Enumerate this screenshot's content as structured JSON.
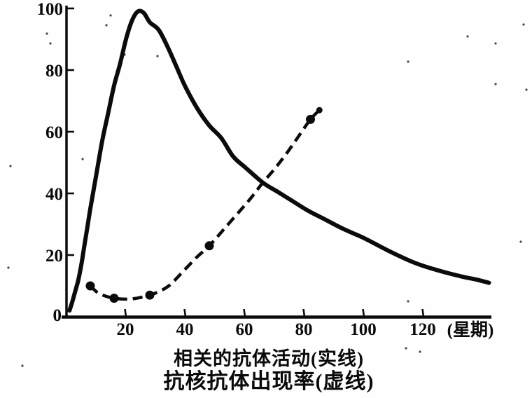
{
  "chart_data": {
    "type": "line",
    "title": "",
    "xlabel": "(星期)",
    "ylabel": "",
    "xlim": [
      0,
      145
    ],
    "ylim": [
      0,
      100
    ],
    "x_ticks": [
      20,
      40,
      60,
      80,
      100,
      120
    ],
    "y_ticks": [
      0,
      20,
      40,
      60,
      80,
      100
    ],
    "grid": false,
    "legend_position": "caption-below",
    "ink_color": "#0b0b0b",
    "background_color": "#fefefe",
    "series": [
      {
        "name": "相关的抗体活动(实线)",
        "line_style": "solid",
        "points": [
          [
            1,
            2
          ],
          [
            2,
            5
          ],
          [
            3,
            8.5
          ],
          [
            4,
            12
          ],
          [
            5,
            17
          ],
          [
            6,
            23
          ],
          [
            7,
            29
          ],
          [
            8,
            35
          ],
          [
            10,
            46
          ],
          [
            12,
            57
          ],
          [
            14,
            66
          ],
          [
            16,
            75
          ],
          [
            18,
            82
          ],
          [
            20,
            90
          ],
          [
            22,
            96
          ],
          [
            24,
            99
          ],
          [
            26,
            98.5
          ],
          [
            28,
            95.5
          ],
          [
            31,
            93
          ],
          [
            34,
            87.5
          ],
          [
            37,
            81
          ],
          [
            40,
            74.5
          ],
          [
            44,
            67.5
          ],
          [
            48,
            62
          ],
          [
            52,
            58
          ],
          [
            56,
            52
          ],
          [
            60,
            48.5
          ],
          [
            66,
            43.5
          ],
          [
            71,
            40.5
          ],
          [
            76,
            37.5
          ],
          [
            81,
            34.5
          ],
          [
            86,
            32
          ],
          [
            93,
            28.5
          ],
          [
            100,
            25.5
          ],
          [
            108,
            21.5
          ],
          [
            117,
            17.5
          ],
          [
            125,
            15
          ],
          [
            133,
            13
          ],
          [
            138,
            12
          ],
          [
            142,
            11
          ]
        ]
      },
      {
        "name": "抗核抗体出现率(虚线)",
        "line_style": "dashed",
        "points": [
          [
            8,
            10
          ],
          [
            11,
            7.5
          ],
          [
            16,
            6
          ],
          [
            22,
            5.8
          ],
          [
            28,
            7
          ],
          [
            32,
            8.6
          ],
          [
            35,
            10.5
          ],
          [
            39,
            14.5
          ],
          [
            44,
            19.5
          ],
          [
            48,
            23
          ],
          [
            53,
            28.5
          ],
          [
            58,
            34
          ],
          [
            62,
            38.5
          ],
          [
            66,
            43.5
          ],
          [
            70,
            48
          ],
          [
            74,
            53
          ],
          [
            78,
            58.5
          ],
          [
            82,
            64
          ],
          [
            85,
            67
          ]
        ],
        "marker_points": [
          [
            8,
            10
          ],
          [
            16,
            6
          ],
          [
            28,
            7
          ],
          [
            48,
            23
          ],
          [
            82,
            64
          ]
        ],
        "end_tip_point": [
          85,
          67
        ]
      }
    ],
    "caption_lines": [
      "相关的抗体活动(实线)",
      "抗核抗体出现率(虚线)"
    ]
  }
}
